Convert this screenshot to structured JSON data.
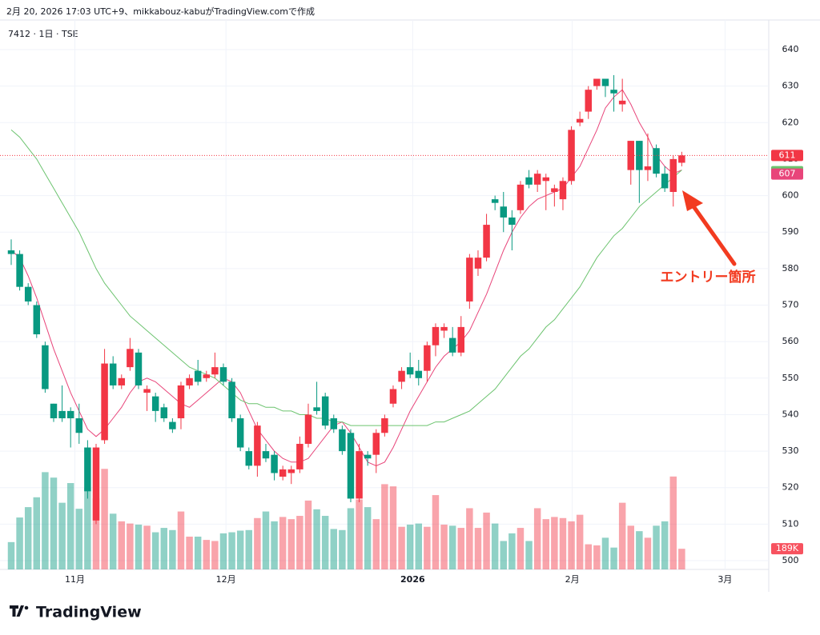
{
  "header": {
    "caption": "2月 20, 2026 17:03 UTC+9、mikkabouz-kabuがTradingView.comで作成",
    "symbol": "7412 · 1日 · TSE"
  },
  "logo": "TradingView",
  "chart_data": {
    "type": "candlestick",
    "up_color": "#f23645",
    "down_color": "#089981",
    "open": [
      585,
      584,
      575,
      570,
      559,
      543,
      541,
      541,
      539,
      531,
      511,
      533,
      554,
      548,
      553,
      557,
      546,
      545,
      542,
      538,
      539,
      548,
      552,
      550,
      551,
      553,
      549,
      539,
      530,
      526,
      530,
      529,
      523,
      524,
      525,
      532,
      542,
      545,
      539,
      536,
      535,
      517,
      529,
      529,
      535,
      543,
      549,
      553,
      552,
      552,
      559,
      563,
      561,
      557,
      571,
      580,
      583,
      599,
      597,
      594,
      596,
      605,
      603,
      604,
      601,
      599,
      604,
      620,
      623,
      630,
      632,
      629,
      625,
      607,
      615,
      607,
      613,
      606,
      601,
      609
    ],
    "high": [
      588,
      585,
      576,
      571,
      560,
      543,
      548,
      542,
      543,
      533,
      532,
      558,
      556,
      551,
      561,
      558,
      548,
      546,
      543,
      539,
      549,
      551,
      555,
      552,
      557,
      554,
      550,
      540,
      531,
      538,
      532,
      530,
      526,
      526,
      534,
      543,
      549,
      546,
      540,
      537,
      536,
      532,
      530,
      536,
      540,
      548,
      553,
      557,
      555,
      560,
      565,
      565,
      564,
      567,
      584,
      585,
      595,
      600,
      601,
      596,
      604,
      607,
      607,
      606,
      603,
      605,
      619,
      623,
      630,
      632,
      632,
      633,
      632,
      615,
      615,
      617,
      614,
      608,
      611,
      612
    ],
    "low": [
      581,
      574,
      570,
      561,
      546,
      538,
      538,
      531,
      532,
      517,
      510,
      532,
      547,
      547,
      552,
      547,
      541,
      538,
      538,
      535,
      536,
      547,
      548,
      549,
      550,
      548,
      538,
      530,
      525,
      523,
      527,
      522,
      522,
      521,
      524,
      531,
      540,
      536,
      535,
      529,
      516,
      516,
      526,
      524,
      534,
      542,
      547,
      550,
      548,
      549,
      556,
      561,
      556,
      556,
      569,
      578,
      582,
      596,
      590,
      585,
      595,
      602,
      601,
      596,
      597,
      596,
      603,
      619,
      621,
      629,
      627,
      623,
      623,
      603,
      598,
      604,
      605,
      601,
      597,
      608
    ],
    "close": [
      584,
      575,
      571,
      562,
      547,
      539,
      539,
      539,
      535,
      519,
      531,
      554,
      548,
      550,
      558,
      548,
      547,
      541,
      539,
      536,
      548,
      550,
      549,
      551,
      553,
      549,
      539,
      531,
      526,
      537,
      528,
      524,
      525,
      525,
      532,
      540,
      541,
      537,
      536,
      530,
      517,
      530,
      528,
      535,
      539,
      547,
      552,
      551,
      550,
      559,
      564,
      564,
      557,
      564,
      583,
      583,
      592,
      598,
      594,
      592,
      603,
      603,
      606,
      605,
      602,
      604,
      618,
      621,
      629,
      632,
      630,
      628,
      626,
      615,
      607,
      608,
      606,
      602,
      610,
      611
    ],
    "volume": [
      250000,
      475000,
      570000,
      660000,
      890000,
      840000,
      610000,
      790000,
      555000,
      745000,
      650000,
      920000,
      510000,
      440000,
      420000,
      410000,
      400000,
      340000,
      380000,
      360000,
      530000,
      300000,
      300000,
      270000,
      260000,
      330000,
      340000,
      355000,
      360000,
      470000,
      530000,
      440000,
      480000,
      460000,
      490000,
      630000,
      550000,
      490000,
      370000,
      360000,
      560000,
      640000,
      570000,
      460000,
      780000,
      760000,
      390000,
      410000,
      420000,
      390000,
      680000,
      410000,
      400000,
      380000,
      560000,
      380000,
      520000,
      420000,
      260000,
      330000,
      380000,
      260000,
      560000,
      460000,
      480000,
      470000,
      440000,
      500000,
      230000,
      220000,
      290000,
      200000,
      610000,
      400000,
      350000,
      290000,
      400000,
      440000,
      850000,
      189000
    ],
    "volume_ylim": [
      0,
      900000
    ],
    "volume_label": {
      "value": 189000,
      "label": "189K"
    },
    "overlays": [
      {
        "color": "#e8457a",
        "values": [
          585,
          583,
          578,
          572,
          565,
          558,
          552,
          546,
          541,
          536,
          534,
          536,
          539,
          542,
          546,
          549,
          550,
          549,
          547,
          545,
          543,
          542,
          544,
          546,
          548,
          550,
          549,
          546,
          541,
          536,
          533,
          530,
          528,
          527,
          527,
          528,
          531,
          534,
          537,
          538,
          535,
          531,
          527,
          526,
          527,
          531,
          536,
          541,
          545,
          549,
          553,
          556,
          558,
          560,
          563,
          568,
          573,
          579,
          585,
          590,
          594,
          597,
          599,
          600,
          601,
          602,
          605,
          608,
          613,
          618,
          624,
          627,
          629,
          625,
          620,
          616,
          611,
          608,
          606,
          607
        ]
      },
      {
        "color": "#6cc36f",
        "values": [
          618,
          616,
          613,
          610,
          606,
          602,
          598,
          594,
          590,
          585,
          580,
          576,
          573,
          570,
          567,
          565,
          563,
          561,
          559,
          557,
          555,
          553,
          552,
          551,
          550,
          548,
          546,
          544,
          543,
          543,
          542,
          542,
          541,
          541,
          540,
          540,
          539,
          539,
          538,
          538,
          537,
          537,
          537,
          537,
          537,
          537,
          537,
          537,
          537,
          537,
          538,
          538,
          539,
          540,
          541,
          543,
          545,
          547,
          550,
          553,
          556,
          558,
          561,
          564,
          566,
          569,
          572,
          575,
          579,
          583,
          586,
          589,
          591,
          594,
          597,
          599,
          601,
          603,
          605,
          607
        ]
      }
    ],
    "ylim": [
      497.6,
      648.1
    ],
    "yticks": [
      500,
      510,
      520,
      530,
      540,
      550,
      560,
      570,
      580,
      590,
      600,
      610,
      620,
      630,
      640
    ],
    "xlim": [
      -1.32,
      89.25
    ],
    "xticks": [
      {
        "value": 7.5,
        "label": "11月"
      },
      {
        "value": 25.3,
        "label": "12月"
      },
      {
        "value": 47.3,
        "label": "2026"
      },
      {
        "value": 66.1,
        "label": "2月"
      },
      {
        "value": 84.1,
        "label": "3月"
      }
    ],
    "grid": true,
    "annotation": "エントリー箇所"
  }
}
